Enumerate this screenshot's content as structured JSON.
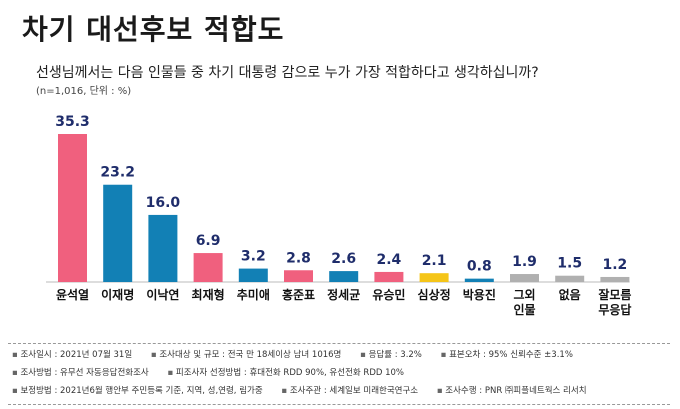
{
  "title": "차기 대선후보 적합도",
  "question": "선생님께서는 다음 인물들 중 차기 대통령 감으로 누가 가장 적합하다고 생각하십니까?",
  "meta": "(n=1,016, 단위 : %)",
  "chart_data": {
    "type": "bar",
    "title": "차기 대선후보 적합도",
    "categories": [
      "윤석열",
      "이재명",
      "이낙연",
      "최재형",
      "추미애",
      "홍준표",
      "정세균",
      "유승민",
      "심상정",
      "박용진",
      "그외 인물",
      "없음",
      "잘모름 무응답"
    ],
    "category_lines": [
      [
        "윤석열"
      ],
      [
        "이재명"
      ],
      [
        "이낙연"
      ],
      [
        "최재형"
      ],
      [
        "추미애"
      ],
      [
        "홍준표"
      ],
      [
        "정세균"
      ],
      [
        "유승민"
      ],
      [
        "심상정"
      ],
      [
        "박용진"
      ],
      [
        "그외",
        "인물"
      ],
      [
        "없음"
      ],
      [
        "잘모름",
        "무응답"
      ]
    ],
    "values": [
      35.3,
      23.2,
      16.0,
      6.9,
      3.2,
      2.8,
      2.6,
      2.4,
      2.1,
      0.8,
      1.9,
      1.5,
      1.2
    ],
    "value_labels": [
      "35.3",
      "23.2",
      "16.0",
      "6.9",
      "3.2",
      "2.8",
      "2.6",
      "2.4",
      "2.1",
      "0.8",
      "1.9",
      "1.5",
      "1.2"
    ],
    "colors": [
      "#f0607e",
      "#1280b5",
      "#1280b5",
      "#f0607e",
      "#1280b5",
      "#f0607e",
      "#1280b5",
      "#f0607e",
      "#f5c518",
      "#1280b5",
      "#b0b0b0",
      "#b0b0b0",
      "#b0b0b0"
    ],
    "ylim": [
      0,
      35.3
    ],
    "xlabel": "",
    "ylabel": "%"
  },
  "notes": {
    "row1": [
      "조사일시 : 2021년 07월 31일",
      "조사대상 및 규모 : 전국 만 18세이상 남녀 1016명",
      "응답률 : 3.2%",
      "표본오차 : 95% 신뢰수준 ±3.1%"
    ],
    "row2": [
      "조사방법 : 유무선 자동응답전화조사",
      "피조사자 선정방법 : 휴대전화 RDD 90%, 유선전화 RDD 10%"
    ],
    "row3": [
      "보정방법 : 2021년6월 행안부 주민등록 기준, 지역, 성,연령, 림가중",
      "조사주관 : 세계일보 미래한국연구소",
      "조사수행 : PNR ㈜피플네트웍스 리서치"
    ]
  }
}
